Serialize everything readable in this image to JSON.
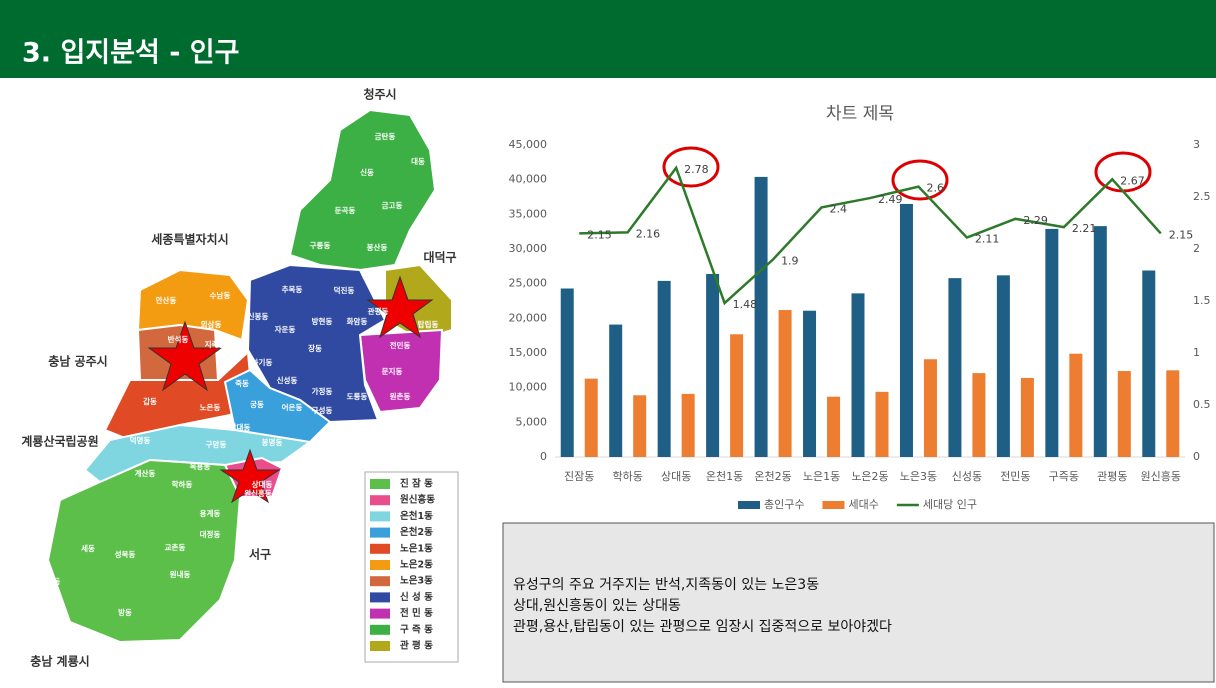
{
  "header": {
    "title": "3. 입지분석 - 인구"
  },
  "map": {
    "regions": [
      "청주시",
      "세종특별자치시",
      "대덕구",
      "충남 공주시",
      "계룡산국립공원",
      "서구",
      "충남 계룡시"
    ],
    "places": [
      "금탄동",
      "대동",
      "신동",
      "둔곡동",
      "금고동",
      "구룡동",
      "봉산동",
      "송강동",
      "추목동",
      "덕진동",
      "신봉동",
      "자운동",
      "방현동",
      "화암동",
      "장동",
      "하기동",
      "신성동",
      "가정동",
      "도룡동",
      "구성동",
      "전민동",
      "문지동",
      "원촌동",
      "관평동",
      "탑립동",
      "안산동",
      "수남동",
      "외삼동",
      "반석동",
      "지족동",
      "갑동",
      "노은동",
      "죽동",
      "궁동",
      "어은동",
      "장대동",
      "덕명동",
      "구암동",
      "봉명동",
      "계산동",
      "복용동",
      "학하동",
      "상대동",
      "원신흥동",
      "용계동",
      "대정동",
      "성북동",
      "교촌동",
      "세동",
      "원내동",
      "송정동",
      "방동"
    ],
    "legend": [
      {
        "label": "진 잠 동",
        "color": "#5cbf4a"
      },
      {
        "label": "원신흥동",
        "color": "#e94e8a"
      },
      {
        "label": "온천1동",
        "color": "#7fd6e0"
      },
      {
        "label": "온천2동",
        "color": "#3aa0dc"
      },
      {
        "label": "노은1동",
        "color": "#e04a25"
      },
      {
        "label": "노은2동",
        "color": "#f39c12"
      },
      {
        "label": "노은3동",
        "color": "#d2693e"
      },
      {
        "label": "신 성 동",
        "color": "#2f4aa0"
      },
      {
        "label": "전 민 동",
        "color": "#c030b0"
      },
      {
        "label": "구 즉 동",
        "color": "#3cb044"
      },
      {
        "label": "관 평 동",
        "color": "#b2a81c"
      }
    ]
  },
  "chart_data": {
    "type": "bar",
    "title": "차트 제목",
    "categories": [
      "진잠동",
      "학하동",
      "상대동",
      "온천1동",
      "온천2동",
      "노은1동",
      "노은2동",
      "노은3동",
      "신성동",
      "전민동",
      "구즉동",
      "관평동",
      "원신흥동"
    ],
    "series": [
      {
        "name": "총인구수",
        "color": "#1f5f85",
        "values": [
          24300,
          19100,
          25400,
          26400,
          40400,
          21100,
          23600,
          36500,
          25800,
          26200,
          32900,
          33300,
          26900
        ]
      },
      {
        "name": "세대수",
        "color": "#ed7d31",
        "values": [
          11300,
          8900,
          9100,
          17700,
          21200,
          8700,
          9400,
          14100,
          12100,
          11400,
          14900,
          12400,
          12500
        ]
      },
      {
        "name": "세대당 인구",
        "color": "#2e7a2b",
        "type": "line",
        "axis": "y2",
        "values": [
          2.15,
          2.16,
          2.78,
          1.48,
          1.9,
          2.4,
          2.49,
          2.6,
          2.11,
          2.29,
          2.21,
          2.67,
          2.15
        ]
      }
    ],
    "ylim": [
      0,
      45000
    ],
    "yticks": [
      0,
      {
        "value": 5000,
        "label": "5,000"
      },
      {
        "value": 10000,
        "label": "10,000"
      },
      {
        "value": 15000,
        "label": "15,000"
      },
      {
        "value": 20000,
        "label": "20,000"
      },
      {
        "value": 25000,
        "label": "25,000"
      },
      {
        "value": 30000,
        "label": "30,000"
      },
      {
        "value": 35000,
        "label": "35,000"
      },
      {
        "value": 40000,
        "label": "40,000"
      },
      {
        "value": 45000,
        "label": "45,000"
      }
    ],
    "y2lim": [
      0,
      3
    ],
    "y2ticks": [
      0,
      0.5,
      1,
      1.5,
      2,
      2.5,
      3
    ],
    "legend": "bottom"
  },
  "note": {
    "lines": [
      "유성구의 주요 거주지는 반석,지족동이 있는 노은3동",
      "상대,원신흥동이 있는 상대동",
      "관평,용산,탑립동이 있는 관평으로 임장시 집중적으로 보아야겠다"
    ]
  }
}
